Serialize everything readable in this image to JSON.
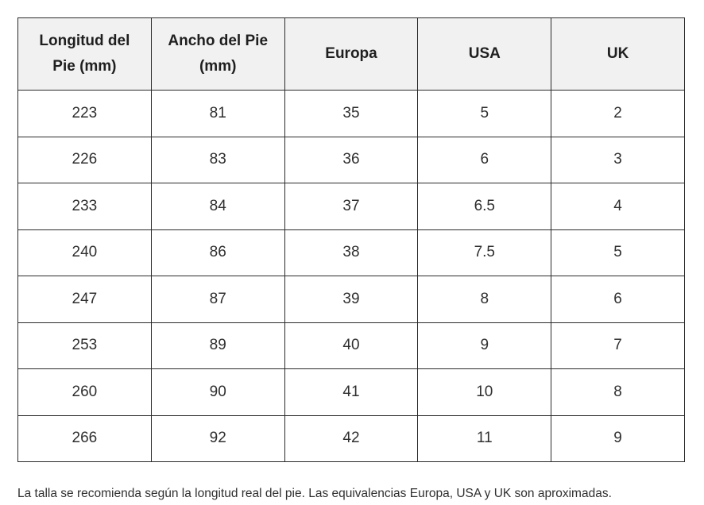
{
  "table": {
    "headers": [
      "Longitud del Pie (mm)",
      "Ancho del Pie (mm)",
      "Europa",
      "USA",
      "UK"
    ],
    "rows": [
      [
        "223",
        "81",
        "35",
        "5",
        "2"
      ],
      [
        "226",
        "83",
        "36",
        "6",
        "3"
      ],
      [
        "233",
        "84",
        "37",
        "6.5",
        "4"
      ],
      [
        "240",
        "86",
        "38",
        "7.5",
        "5"
      ],
      [
        "247",
        "87",
        "39",
        "8",
        "6"
      ],
      [
        "253",
        "89",
        "40",
        "9",
        "7"
      ],
      [
        "260",
        "90",
        "41",
        "10",
        "8"
      ],
      [
        "266",
        "92",
        "42",
        "11",
        "9"
      ]
    ]
  },
  "footnote": "La talla se recomienda según la longitud real del pie. Las equivalencias Europa, USA y UK son aproximadas."
}
